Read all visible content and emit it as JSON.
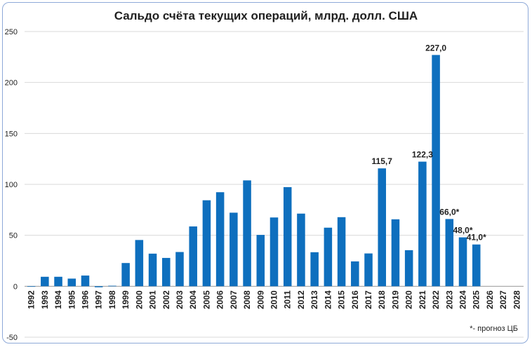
{
  "chart_data": {
    "type": "bar",
    "title": "Сальдо счёта текущих операций, млрд. долл. США",
    "xlabel": "",
    "ylabel": "",
    "ylim": [
      -50,
      250
    ],
    "yticks": [
      -50,
      0,
      50,
      100,
      150,
      200,
      250
    ],
    "grid": true,
    "bar_color": "#0e6fbe",
    "categories": [
      "1992",
      "1993",
      "1994",
      "1995",
      "1996",
      "1997",
      "1998",
      "1999",
      "2000",
      "2001",
      "2002",
      "2003",
      "2004",
      "2005",
      "2006",
      "2007",
      "2008",
      "2009",
      "2010",
      "2011",
      "2012",
      "2013",
      "2014",
      "2015",
      "2016",
      "2017",
      "2018",
      "2019",
      "2020",
      "2021",
      "2022",
      "2023",
      "2024",
      "2025",
      "2026",
      "2027",
      "2028"
    ],
    "values": [
      -0.5,
      9.3,
      9.3,
      7.5,
      10.5,
      -1.0,
      0.5,
      22.8,
      45.4,
      32.0,
      27.8,
      33.6,
      58.7,
      84.4,
      92.3,
      72.2,
      103.9,
      50.4,
      67.5,
      97.3,
      71.3,
      33.4,
      57.5,
      67.8,
      24.4,
      32.2,
      115.7,
      65.7,
      35.4,
      122.3,
      227.0,
      66.0,
      48.0,
      41.0,
      null,
      null,
      null
    ],
    "data_labels": [
      {
        "category": "2018",
        "text": "115,7"
      },
      {
        "category": "2021",
        "text": "122,3"
      },
      {
        "category": "2022",
        "text": "227,0"
      },
      {
        "category": "2023",
        "text": "66,0*"
      },
      {
        "category": "2024",
        "text": "48,0*"
      },
      {
        "category": "2025",
        "text": "41,0*"
      }
    ],
    "footnote": "*- прогноз ЦБ"
  }
}
